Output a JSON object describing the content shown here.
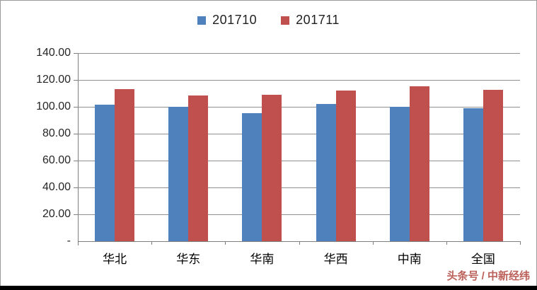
{
  "chart_data": {
    "type": "bar",
    "title": "",
    "categories": [
      "华北",
      "华东",
      "华南",
      "华西",
      "中南",
      "全国"
    ],
    "series": [
      {
        "name": "201710",
        "color": "#4F81BD",
        "values": [
          101.4,
          100.0,
          95.5,
          102.0,
          100.2,
          99.0
        ]
      },
      {
        "name": "201711",
        "color": "#C0504D",
        "values": [
          113.0,
          108.6,
          109.0,
          112.2,
          115.5,
          112.5
        ]
      }
    ],
    "xlabel": "",
    "ylabel": "",
    "ylim": [
      0,
      140
    ],
    "ytick_step": 20,
    "ytick_labels": [
      "-",
      "20.00",
      "40.00",
      "60.00",
      "80.00",
      "100.00",
      "120.00",
      "140.00"
    ],
    "grid": true,
    "legend_position": "top-center",
    "gridline_color": "#8f8f8f",
    "axis_color": "#7f7f7f"
  },
  "legend": {
    "items": [
      {
        "label": "201710",
        "color": "#4F81BD"
      },
      {
        "label": "201711",
        "color": "#C0504D"
      }
    ]
  },
  "watermark": {
    "text": "头条号 / 中新经纬",
    "color": "#b0453c"
  }
}
